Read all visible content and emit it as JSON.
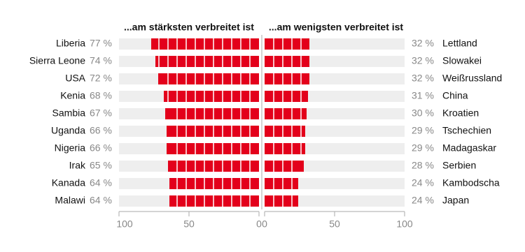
{
  "chart_data": [
    {
      "type": "bar",
      "orientation": "horizontal",
      "title": "...am stärksten verbreitet ist",
      "categories": [
        "Liberia",
        "Sierra Leone",
        "USA",
        "Kenia",
        "Sambia",
        "Uganda",
        "Nigeria",
        "Irak",
        "Kanada",
        "Malawi"
      ],
      "values": [
        77,
        74,
        72,
        68,
        67,
        66,
        66,
        65,
        64,
        64
      ],
      "value_labels": [
        "77 %",
        "74 %",
        "72 %",
        "68 %",
        "67 %",
        "66 %",
        "66 %",
        "65 %",
        "64 %",
        "64 %"
      ],
      "color": "#e3001b",
      "xlim": [
        100,
        0
      ],
      "xticks": [
        100,
        50,
        0
      ]
    },
    {
      "type": "bar",
      "orientation": "horizontal",
      "title": "...am wenigsten verbreitet ist",
      "categories": [
        "Lettland",
        "Slowakei",
        "Weißrussland",
        "China",
        "Kroatien",
        "Tschechien",
        "Madagaskar",
        "Serbien",
        "Kambodscha",
        "Japan"
      ],
      "values": [
        32,
        32,
        32,
        31,
        30,
        29,
        29,
        28,
        24,
        24
      ],
      "value_labels": [
        "32 %",
        "32 %",
        "32 %",
        "31 %",
        "30 %",
        "29 %",
        "29 %",
        "28 %",
        "24 %",
        "24 %"
      ],
      "color": "#e3001b",
      "xlim": [
        0,
        100
      ],
      "xticks": [
        0,
        50,
        100
      ]
    }
  ]
}
